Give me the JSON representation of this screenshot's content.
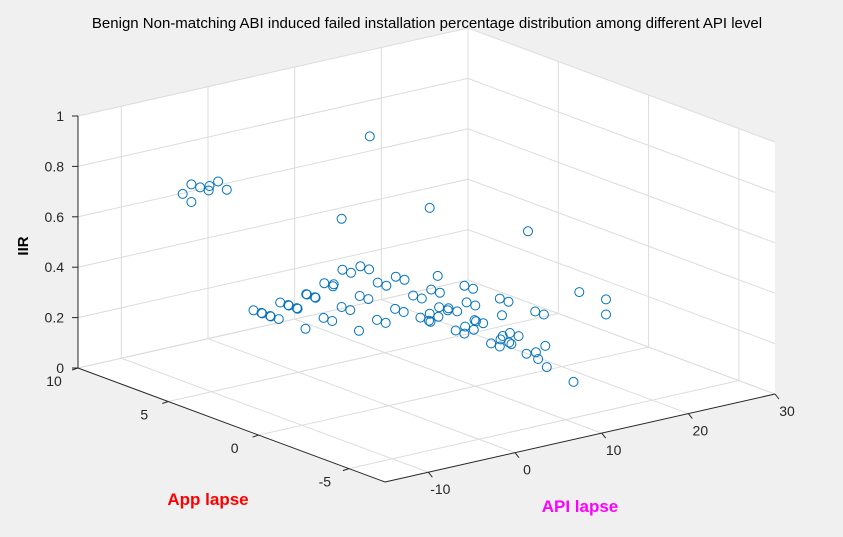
{
  "colors": {
    "background": "#f0f0f0",
    "axes_face": "#ffffff",
    "grid": "#dcdcdc",
    "axis_line": "#262626",
    "marker": "#0072bd",
    "app_label_color": "#ff0000",
    "api_label_color": "#ff00ff"
  },
  "chart_data": {
    "type": "scatter3d",
    "title": "Benign Non-matching ABI induced failed installation percentage distribution among different API level",
    "xlabel": "API lapse",
    "ylabel": "App lapse",
    "zlabel": "IIR",
    "xlim": [
      -15,
      30
    ],
    "ylim": [
      -7,
      10
    ],
    "zlim": [
      0,
      1
    ],
    "xticks": [
      -10,
      0,
      10,
      20,
      30
    ],
    "yticks": [
      -5,
      0,
      5,
      10
    ],
    "zticks": [
      0,
      0.2,
      0.4,
      0.6,
      0.8,
      1
    ],
    "xtick_labels": [
      "-10",
      "0",
      "10",
      "20",
      "30"
    ],
    "ytick_labels": [
      "-5",
      "0",
      "5",
      "10"
    ],
    "ztick_labels": [
      "0",
      "0.2",
      "0.4",
      "0.6",
      "0.8",
      "1"
    ],
    "grid": true,
    "marker": "open-circle",
    "series": [
      {
        "points": [
          [
            2,
            2,
            1.0
          ],
          [
            11,
            3,
            0.62
          ],
          [
            14,
            -1,
            0.61
          ],
          [
            5,
            5,
            0.57
          ],
          [
            -5,
            9,
            0.64
          ],
          [
            -4,
            9,
            0.67
          ],
          [
            -4,
            8,
            0.69
          ],
          [
            -3,
            8,
            0.7
          ],
          [
            -3,
            9,
            0.65
          ],
          [
            -2,
            8,
            0.66
          ],
          [
            -4,
            9,
            0.6
          ],
          [
            -2,
            9,
            0.63
          ],
          [
            22,
            0,
            0.28
          ],
          [
            23,
            -1,
            0.27
          ],
          [
            23,
            -1,
            0.21
          ],
          [
            3,
            3,
            0.45
          ],
          [
            4,
            3,
            0.43
          ],
          [
            5,
            2,
            0.42
          ],
          [
            6,
            2,
            0.4
          ],
          [
            7,
            1,
            0.38
          ],
          [
            8,
            1,
            0.36
          ],
          [
            9,
            0,
            0.34
          ],
          [
            10,
            0,
            0.32
          ],
          [
            11,
            -1,
            0.3
          ],
          [
            3,
            4,
            0.41
          ],
          [
            4,
            4,
            0.39
          ],
          [
            5,
            3,
            0.37
          ],
          [
            6,
            3,
            0.35
          ],
          [
            7,
            2,
            0.33
          ],
          [
            8,
            2,
            0.31
          ],
          [
            9,
            1,
            0.29
          ],
          [
            10,
            1,
            0.27
          ],
          [
            2,
            4,
            0.36
          ],
          [
            3,
            5,
            0.33
          ],
          [
            4,
            5,
            0.31
          ],
          [
            5,
            4,
            0.29
          ],
          [
            6,
            4,
            0.27
          ],
          [
            7,
            3,
            0.25
          ],
          [
            8,
            3,
            0.23
          ],
          [
            9,
            2,
            0.21
          ],
          [
            1,
            5,
            0.3
          ],
          [
            2,
            5,
            0.28
          ],
          [
            3,
            6,
            0.26
          ],
          [
            4,
            6,
            0.24
          ],
          [
            5,
            5,
            0.22
          ],
          [
            6,
            5,
            0.2
          ],
          [
            7,
            4,
            0.18
          ],
          [
            8,
            4,
            0.16
          ],
          [
            0,
            6,
            0.25
          ],
          [
            1,
            6,
            0.23
          ],
          [
            2,
            6,
            0.21
          ],
          [
            3,
            7,
            0.19
          ],
          [
            4,
            7,
            0.17
          ],
          [
            5,
            6,
            0.15
          ],
          [
            6,
            6,
            0.13
          ],
          [
            7,
            5,
            0.11
          ],
          [
            -1,
            7,
            0.2
          ],
          [
            0,
            7,
            0.18
          ],
          [
            1,
            7,
            0.16
          ],
          [
            2,
            8,
            0.14
          ],
          [
            3,
            8,
            0.12
          ],
          [
            4,
            8,
            0.1
          ],
          [
            5,
            7,
            0.08
          ],
          [
            10,
            2,
            0.26
          ],
          [
            11,
            2,
            0.24
          ],
          [
            12,
            1,
            0.22
          ],
          [
            13,
            1,
            0.2
          ],
          [
            14,
            0,
            0.18
          ],
          [
            15,
            0,
            0.16
          ],
          [
            16,
            -1,
            0.14
          ],
          [
            11,
            3,
            0.2
          ],
          [
            12,
            3,
            0.18
          ],
          [
            13,
            2,
            0.16
          ],
          [
            14,
            2,
            0.14
          ],
          [
            15,
            1,
            0.12
          ],
          [
            16,
            1,
            0.1
          ],
          [
            17,
            0,
            0.08
          ],
          [
            12,
            4,
            0.15
          ],
          [
            13,
            4,
            0.13
          ],
          [
            14,
            3,
            0.11
          ],
          [
            15,
            3,
            0.09
          ],
          [
            16,
            2,
            0.07
          ],
          [
            17,
            2,
            0.05
          ],
          [
            18,
            1,
            0.04
          ],
          [
            8,
            -1,
            0.3
          ],
          [
            9,
            -2,
            0.26
          ],
          [
            10,
            -2,
            0.22
          ],
          [
            11,
            -3,
            0.18
          ],
          [
            12,
            -3,
            0.14
          ],
          [
            13,
            -4,
            0.1
          ],
          [
            14,
            4,
            0.3
          ],
          [
            15,
            3,
            0.28
          ],
          [
            16,
            3,
            0.26
          ],
          [
            17,
            2,
            0.24
          ],
          [
            18,
            2,
            0.22
          ],
          [
            19,
            1,
            0.2
          ],
          [
            20,
            1,
            0.18
          ]
        ]
      }
    ]
  }
}
